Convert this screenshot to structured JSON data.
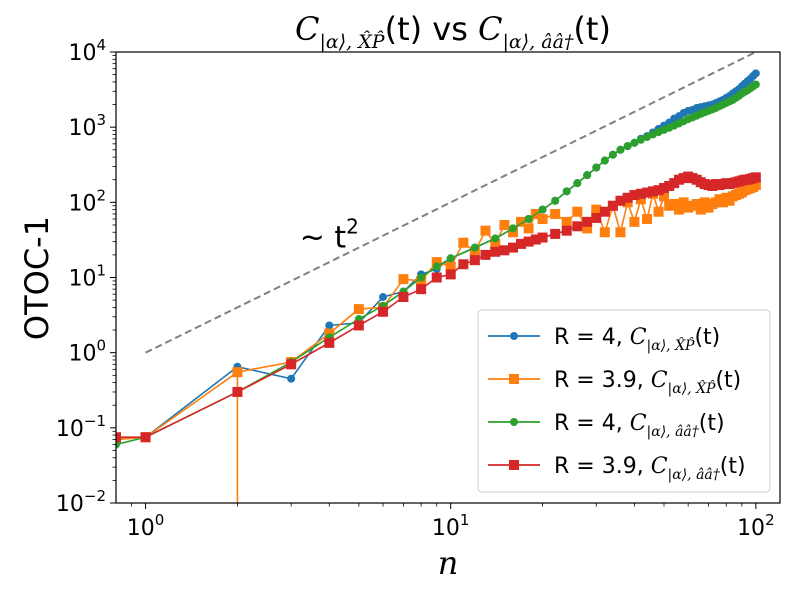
{
  "chart_data": {
    "type": "line",
    "title": {
      "left_math": "C",
      "left_sub": "|α⟩, X̂P̂",
      "arg": "(t)",
      "mid": " vs ",
      "right_math": "C",
      "right_sub": "|α⟩, ââ†"
    },
    "xlabel": "n",
    "ylabel": "OTOC-1",
    "xscale": "log",
    "yscale": "log",
    "xlim": [
      0.8,
      120
    ],
    "ylim": [
      0.01,
      10000
    ],
    "x_ticks": [
      {
        "v": 1,
        "label": "10",
        "exp": "0"
      },
      {
        "v": 10,
        "label": "10",
        "exp": "1"
      },
      {
        "v": 100,
        "label": "10",
        "exp": "2"
      }
    ],
    "y_ticks": [
      {
        "v": 0.01,
        "label": "10",
        "exp": "−2"
      },
      {
        "v": 0.1,
        "label": "10",
        "exp": "−1"
      },
      {
        "v": 1,
        "label": "10",
        "exp": "0"
      },
      {
        "v": 10,
        "label": "10",
        "exp": "1"
      },
      {
        "v": 100,
        "label": "10",
        "exp": "2"
      },
      {
        "v": 1000,
        "label": "10",
        "exp": "3"
      },
      {
        "v": 10000,
        "label": "10",
        "exp": "4"
      }
    ],
    "annotation": {
      "text": "~ t",
      "exp": "2",
      "x": 3.2,
      "y": 25
    },
    "reference": {
      "x": [
        1,
        100
      ],
      "y": [
        1,
        10000
      ],
      "color": "#808080",
      "style": "dashed"
    },
    "legend_position": "lower-right",
    "series": [
      {
        "name": "R = 4, C|α⟩,X̂P̂(t)",
        "legend": {
          "prefix": "R = 4, ",
          "sym": "C",
          "sub": "|α⟩, X̂P̂",
          "arg": "(t)"
        },
        "color": "#1f77b4",
        "marker": "circle",
        "x": [
          0.8,
          1,
          2,
          3,
          4,
          5,
          6,
          7,
          8,
          9,
          10,
          12,
          14,
          16,
          18,
          20,
          22,
          24,
          26,
          28,
          30,
          32,
          34,
          36,
          38,
          40,
          42,
          44,
          46,
          48,
          50,
          52,
          54,
          56,
          58,
          60,
          62,
          64,
          66,
          68,
          70,
          72,
          74,
          76,
          78,
          80,
          82,
          84,
          86,
          88,
          90,
          92,
          94,
          96,
          98,
          100
        ],
        "y": [
          0.07,
          0.075,
          0.65,
          0.45,
          2.3,
          2.5,
          5.5,
          6.5,
          11,
          13,
          18,
          25,
          33,
          45,
          60,
          80,
          105,
          140,
          180,
          230,
          290,
          360,
          430,
          500,
          560,
          620,
          700,
          760,
          850,
          950,
          1050,
          1150,
          1300,
          1400,
          1550,
          1650,
          1700,
          1800,
          1850,
          1900,
          1950,
          2000,
          2100,
          2200,
          2300,
          2450,
          2600,
          2800,
          3000,
          3200,
          3500,
          3800,
          4100,
          4400,
          4800,
          5200
        ]
      },
      {
        "name": "R = 3.9, C|α⟩,X̂P̂(t)",
        "legend": {
          "prefix": "R = 3.9, ",
          "sym": "C",
          "sub": "|α⟩, X̂P̂",
          "arg": "(t)"
        },
        "color": "#ff7f0e",
        "marker": "square",
        "x": [
          0.8,
          1,
          2,
          3,
          4,
          5,
          6,
          7,
          8,
          9,
          10,
          11,
          12,
          13,
          14,
          15,
          16,
          17,
          18,
          19,
          20,
          22,
          24,
          26,
          28,
          30,
          32,
          34,
          36,
          38,
          40,
          42,
          44,
          46,
          48,
          50,
          52,
          54,
          56,
          58,
          60,
          62,
          64,
          66,
          68,
          70,
          72,
          74,
          76,
          78,
          80,
          82,
          84,
          86,
          88,
          90,
          92,
          94,
          96,
          98,
          100
        ],
        "y": [
          0.07,
          0.075,
          0.55,
          0.75,
          1.8,
          3.8,
          4.0,
          9.5,
          9.0,
          16,
          14,
          29,
          22,
          42,
          28,
          50,
          40,
          55,
          45,
          70,
          60,
          70,
          55,
          75,
          45,
          80,
          40,
          90,
          40,
          100,
          55,
          110,
          60,
          130,
          75,
          120,
          90,
          95,
          80,
          100,
          85,
          90,
          95,
          80,
          100,
          85,
          95,
          100,
          110,
          100,
          115,
          105,
          120,
          125,
          130,
          135,
          145,
          150,
          155,
          160,
          170
        ]
      },
      {
        "name": "R = 4, C|α⟩,âa†(t)",
        "legend": {
          "prefix": "R = 4, ",
          "sym": "C",
          "sub": "|α⟩, ââ†",
          "arg": "(t)"
        },
        "color": "#2ca02c",
        "marker": "circle",
        "x": [
          0.8,
          1,
          2,
          3,
          4,
          5,
          6,
          7,
          8,
          9,
          10,
          12,
          14,
          16,
          18,
          20,
          22,
          24,
          26,
          28,
          30,
          32,
          34,
          36,
          38,
          40,
          42,
          44,
          46,
          48,
          50,
          52,
          54,
          56,
          58,
          60,
          62,
          64,
          66,
          68,
          70,
          72,
          74,
          76,
          78,
          80,
          82,
          84,
          86,
          88,
          90,
          92,
          94,
          96,
          98,
          100
        ],
        "y": [
          0.06,
          0.075,
          0.3,
          0.75,
          1.6,
          2.8,
          4.2,
          6.5,
          10,
          14,
          18,
          25,
          33,
          45,
          60,
          80,
          105,
          140,
          180,
          230,
          290,
          360,
          430,
          500,
          560,
          620,
          680,
          740,
          800,
          860,
          920,
          980,
          1050,
          1120,
          1200,
          1280,
          1350,
          1420,
          1500,
          1580,
          1650,
          1720,
          1800,
          1900,
          2000,
          2100,
          2200,
          2300,
          2450,
          2600,
          2800,
          2950,
          3100,
          3300,
          3500,
          3700
        ]
      },
      {
        "name": "R = 3.9, C|α⟩,âa†(t)",
        "legend": {
          "prefix": "R = 3.9, ",
          "sym": "C",
          "sub": "|α⟩, ââ†",
          "arg": "(t)"
        },
        "color": "#d62728",
        "marker": "square",
        "x": [
          0.8,
          1,
          2,
          3,
          4,
          5,
          6,
          7,
          8,
          9,
          10,
          11,
          12,
          13,
          14,
          15,
          16,
          17,
          18,
          19,
          20,
          22,
          24,
          26,
          28,
          30,
          32,
          34,
          36,
          38,
          40,
          42,
          44,
          46,
          48,
          50,
          52,
          54,
          56,
          58,
          60,
          62,
          64,
          66,
          68,
          70,
          72,
          74,
          76,
          78,
          80,
          82,
          84,
          86,
          88,
          90,
          92,
          94,
          96,
          98,
          100
        ],
        "y": [
          0.075,
          0.075,
          0.3,
          0.7,
          1.35,
          2.3,
          3.5,
          5.5,
          7.0,
          10,
          11,
          15,
          17,
          20,
          22,
          23,
          25,
          28,
          30,
          32,
          34,
          38,
          42,
          48,
          55,
          62,
          75,
          90,
          105,
          115,
          125,
          130,
          135,
          140,
          145,
          155,
          165,
          180,
          200,
          210,
          220,
          210,
          200,
          185,
          175,
          170,
          165,
          175,
          170,
          175,
          180,
          175,
          180,
          185,
          190,
          195,
          200,
          200,
          205,
          210,
          215
        ]
      }
    ]
  }
}
